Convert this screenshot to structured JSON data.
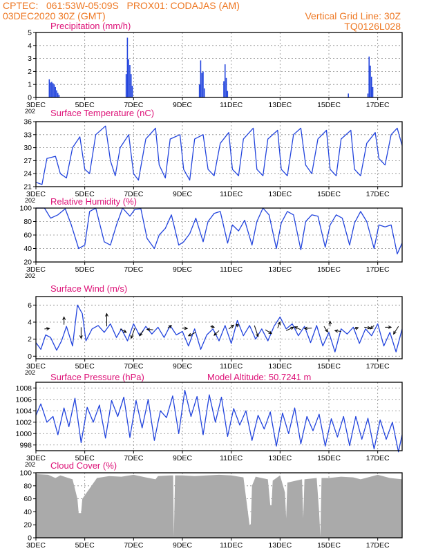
{
  "header": {
    "line1_left": "CPTEC:   061:53W-05:09S   PROX01: CODAJAS (AM)",
    "line2_left": "03DEC2020 30Z (GMT)",
    "line2_right": "Vertical Grid Line: 30Z",
    "line3_right": "TQ0126L028"
  },
  "colors": {
    "header_text": "#ee7722",
    "panel_title": "#dd1177",
    "series_line": "#2244dd",
    "cloud_fill": "#aaaaaa",
    "arrow": "#000000",
    "grid": "#888888"
  },
  "x_axis": {
    "tick_labels": [
      "3DEC",
      "5DEC",
      "7DEC",
      "9DEC",
      "11DEC",
      "13DEC",
      "15DEC",
      "17DEC"
    ],
    "tick_days": [
      3,
      5,
      7,
      9,
      11,
      13,
      15,
      17
    ],
    "range_days": [
      3,
      18
    ],
    "year_fragment": "202"
  },
  "chart_data": [
    {
      "type": "bar",
      "title": "Precipitation (mm/h)",
      "ylim": [
        0,
        5
      ],
      "yticks": [
        0,
        1,
        2,
        3,
        4,
        5
      ],
      "bars": [
        [
          3.55,
          1.4
        ],
        [
          3.6,
          1.15
        ],
        [
          3.65,
          1.2
        ],
        [
          3.7,
          1.1
        ],
        [
          3.75,
          1.0
        ],
        [
          3.8,
          0.8
        ],
        [
          3.85,
          0.55
        ],
        [
          3.9,
          0.35
        ],
        [
          3.95,
          0.2
        ],
        [
          6.7,
          1.8
        ],
        [
          6.75,
          4.6
        ],
        [
          6.8,
          2.95
        ],
        [
          6.85,
          2.5
        ],
        [
          6.9,
          1.8
        ],
        [
          6.95,
          0.9
        ],
        [
          9.7,
          1.0
        ],
        [
          9.75,
          2.85
        ],
        [
          9.8,
          1.9
        ],
        [
          9.85,
          2.0
        ],
        [
          9.9,
          0.7
        ],
        [
          10.7,
          1.25
        ],
        [
          10.75,
          2.55
        ],
        [
          10.8,
          1.5
        ],
        [
          10.85,
          0.5
        ],
        [
          15.8,
          0.3
        ],
        [
          16.6,
          0.3
        ],
        [
          16.65,
          3.15
        ],
        [
          16.7,
          2.45
        ],
        [
          16.75,
          1.6
        ],
        [
          16.8,
          0.8
        ]
      ]
    },
    {
      "type": "line",
      "title": "Surface Temperature (nC)",
      "ylim": [
        21,
        36
      ],
      "yticks": [
        21,
        24,
        27,
        30,
        33,
        36
      ],
      "x": [
        3,
        3.25,
        3.45,
        3.8,
        4,
        4.25,
        4.5,
        4.8,
        5,
        5.2,
        5.45,
        5.85,
        6.05,
        6.25,
        6.45,
        6.8,
        7,
        7.2,
        7.5,
        7.9,
        8.05,
        8.3,
        8.5,
        8.9,
        9.05,
        9.3,
        9.5,
        9.85,
        10.05,
        10.3,
        10.55,
        10.9,
        11.05,
        11.3,
        11.5,
        11.9,
        12.05,
        12.3,
        12.5,
        12.9,
        13.05,
        13.3,
        13.55,
        13.85,
        14.05,
        14.3,
        14.55,
        14.9,
        15.05,
        15.3,
        15.5,
        15.9,
        16.05,
        16.3,
        16.55,
        16.9,
        17.05,
        17.3,
        17.55,
        17.8,
        18
      ],
      "y": [
        22,
        21.5,
        27.5,
        28,
        24,
        23,
        30,
        32.5,
        25,
        24,
        33,
        35,
        27,
        23.5,
        30,
        33,
        24,
        22.5,
        32,
        34.5,
        26,
        23,
        32,
        33,
        25,
        22.5,
        32,
        33,
        25,
        23.5,
        31,
        33.5,
        25,
        23.5,
        32,
        34.5,
        25,
        23.5,
        32,
        34,
        25,
        23.5,
        33,
        34.5,
        26,
        24,
        32,
        34,
        25,
        23.5,
        32,
        34,
        25,
        23.5,
        31,
        33.5,
        27.5,
        26,
        33,
        34.5,
        30.5
      ]
    },
    {
      "type": "line",
      "title": "Relative Humidity (%)",
      "ylim": [
        20,
        100
      ],
      "yticks": [
        20,
        40,
        60,
        80,
        100
      ],
      "x": [
        3,
        3.35,
        3.6,
        3.9,
        4.2,
        4.45,
        4.75,
        5,
        5.2,
        5.45,
        5.8,
        6.05,
        6.3,
        6.55,
        6.85,
        7.05,
        7.3,
        7.55,
        7.85,
        8.05,
        8.3,
        8.55,
        8.85,
        9.05,
        9.3,
        9.55,
        9.85,
        10.05,
        10.3,
        10.55,
        10.85,
        11.05,
        11.3,
        11.55,
        11.85,
        12.05,
        12.3,
        12.55,
        12.85,
        13.05,
        13.3,
        13.55,
        13.85,
        14.05,
        14.3,
        14.55,
        14.85,
        15.05,
        15.3,
        15.55,
        15.85,
        16.05,
        16.3,
        16.55,
        16.85,
        17.05,
        17.3,
        17.55,
        17.8,
        18
      ],
      "y": [
        100,
        100,
        85,
        90,
        99,
        75,
        40,
        45,
        95,
        100,
        50,
        45,
        75,
        100,
        88,
        98,
        99,
        55,
        40,
        60,
        70,
        90,
        45,
        50,
        62,
        85,
        50,
        80,
        92,
        95,
        48,
        75,
        66,
        82,
        45,
        80,
        100,
        90,
        40,
        78,
        95,
        90,
        38,
        80,
        90,
        88,
        42,
        75,
        90,
        85,
        45,
        78,
        95,
        80,
        40,
        75,
        72,
        75,
        32,
        48
      ]
    },
    {
      "type": "line",
      "title": "Surface Wind (m/s)",
      "ylim": [
        -0.3,
        7
      ],
      "yticks": [
        0,
        2,
        4,
        6
      ],
      "x": [
        3,
        3.2,
        3.4,
        3.6,
        3.85,
        4.05,
        4.25,
        4.5,
        4.7,
        4.9,
        5.05,
        5.3,
        5.55,
        5.8,
        6.05,
        6.3,
        6.5,
        6.75,
        7,
        7.25,
        7.5,
        7.75,
        8,
        8.25,
        8.5,
        8.75,
        9,
        9.25,
        9.5,
        9.75,
        10,
        10.25,
        10.5,
        10.75,
        11,
        11.25,
        11.5,
        11.75,
        12,
        12.25,
        12.5,
        12.75,
        13,
        13.25,
        13.5,
        13.75,
        14,
        14.25,
        14.5,
        14.75,
        15,
        15.25,
        15.5,
        15.75,
        16,
        16.25,
        16.5,
        16.75,
        17,
        17.25,
        17.5,
        17.75,
        18
      ],
      "y": [
        1.6,
        0.8,
        2.5,
        2.2,
        0.7,
        1.8,
        3.5,
        1.2,
        6,
        5,
        1.8,
        3.2,
        3.6,
        2.8,
        3.8,
        2.2,
        3.2,
        1.8,
        3.8,
        2.4,
        3.5,
        2.6,
        3.4,
        2.2,
        3.6,
        2.5,
        2.9,
        1.2,
        3.2,
        0.8,
        2.5,
        3.2,
        1.8,
        3.6,
        1.5,
        4.2,
        2.4,
        3.6,
        2,
        3.2,
        1.8,
        3.5,
        4.6,
        3.2,
        3.8,
        2.4,
        3.5,
        1.6,
        3.6,
        1.2,
        2.8,
        0.5,
        3.2,
        2.6,
        3.4,
        1.5,
        3.2,
        2.4,
        3.8,
        1.2,
        2.8,
        0.5,
        3.2
      ],
      "arrows": [
        [
          3.35,
          3.2,
          0.2,
          0.05
        ],
        [
          4.15,
          3.7,
          0,
          0.9
        ],
        [
          4.85,
          3.4,
          0,
          -1.3
        ],
        [
          5.9,
          3.5,
          0,
          1.5
        ],
        [
          6.45,
          3.2,
          0.25,
          -0.4
        ],
        [
          7.05,
          3.3,
          -0.15,
          -1.2
        ],
        [
          7.4,
          3.0,
          -0.15,
          -0.6
        ],
        [
          7.8,
          3.1,
          -0.25,
          0.05
        ],
        [
          8.4,
          3.3,
          0.15,
          0.3
        ],
        [
          9.0,
          3.3,
          0.2,
          -0.05
        ],
        [
          9.55,
          2.8,
          -0.3,
          -0.4
        ],
        [
          10.15,
          3.5,
          0.15,
          -0.1
        ],
        [
          10.5,
          3.0,
          -0.2,
          -0.55
        ],
        [
          10.9,
          3.2,
          0.2,
          0.45
        ],
        [
          11.3,
          3.5,
          -0.1,
          0.25
        ],
        [
          11.95,
          3.6,
          0.15,
          -1.3
        ],
        [
          12.4,
          3.1,
          0.25,
          -0.45
        ],
        [
          12.9,
          3.3,
          0.1,
          0.7
        ],
        [
          13.25,
          3.0,
          0.3,
          0.4
        ],
        [
          13.85,
          3.1,
          -0.25,
          0.35
        ],
        [
          14.3,
          3.3,
          -0.3,
          -0.05
        ],
        [
          14.8,
          3.5,
          0.15,
          -0.65
        ],
        [
          15.05,
          3.5,
          0,
          0.6
        ],
        [
          15.5,
          2.9,
          -0.25,
          0.1
        ],
        [
          16.05,
          3.2,
          0.15,
          0.15
        ],
        [
          16.45,
          3.4,
          0.25,
          -0.1
        ],
        [
          16.85,
          3.6,
          -0.15,
          -0.4
        ],
        [
          17.3,
          3.4,
          0.25,
          0
        ],
        [
          17.85,
          3.5,
          -0.2,
          -0.9
        ]
      ]
    },
    {
      "type": "line",
      "title": "Surface Pressure (hPa)",
      "subtitle": "Model Altitude: 50.7241  m",
      "ylim": [
        997,
        1009
      ],
      "yticks": [
        998,
        1000,
        1002,
        1004,
        1006,
        1008
      ],
      "x": [
        3,
        3.2,
        3.45,
        3.7,
        3.9,
        4.15,
        4.35,
        4.6,
        4.85,
        5.1,
        5.35,
        5.6,
        5.85,
        6.1,
        6.35,
        6.6,
        6.85,
        7.1,
        7.35,
        7.6,
        7.85,
        8.1,
        8.35,
        8.6,
        8.85,
        9.1,
        9.35,
        9.6,
        9.85,
        10.1,
        10.35,
        10.6,
        10.85,
        11.1,
        11.35,
        11.6,
        11.85,
        12.1,
        12.35,
        12.6,
        12.85,
        13.1,
        13.35,
        13.6,
        13.85,
        14.1,
        14.35,
        14.6,
        14.85,
        15.1,
        15.35,
        15.6,
        15.85,
        16.1,
        16.35,
        16.6,
        16.85,
        17.1,
        17.35,
        17.6,
        17.85,
        18
      ],
      "y": [
        1003.2,
        1005.2,
        1002.0,
        1003.0,
        999.8,
        1004.5,
        1001.2,
        1006.2,
        998.4,
        1004.6,
        1002.0,
        1005.0,
        999.2,
        1005.8,
        1003.0,
        1006.4,
        999.3,
        1005.8,
        1001.0,
        1006.0,
        998.8,
        1004.0,
        1002.8,
        1006.6,
        1000.0,
        1007.6,
        1003.0,
        1006.5,
        999.8,
        1006.8,
        1002.0,
        1006.4,
        999.5,
        1004.4,
        1001.5,
        1004.0,
        998.8,
        1003.2,
        1000.8,
        1003.8,
        997.8,
        1003.6,
        1000.0,
        1004.5,
        998.2,
        1003.0,
        1000.5,
        1003.4,
        997.8,
        1002.6,
        999.4,
        1003.0,
        997.9,
        1003.0,
        999.0,
        1002.7,
        997.3,
        1002.4,
        999.0,
        1002.0,
        996.8,
        999.8
      ]
    },
    {
      "type": "area",
      "title": "Cloud Cover (%)",
      "ylim": [
        0,
        100
      ],
      "yticks": [
        0,
        20,
        40,
        60,
        80,
        100
      ],
      "x": [
        3,
        3.5,
        3.8,
        4,
        4.5,
        4.7,
        4.75,
        4.85,
        4.9,
        5.5,
        6,
        6.5,
        7,
        7.5,
        7.9,
        8,
        8.5,
        8.62,
        8.65,
        8.7,
        9,
        9.5,
        10,
        10.5,
        11,
        11.5,
        11.75,
        11.8,
        11.85,
        12,
        12.5,
        12.6,
        12.65,
        12.7,
        13,
        13.2,
        13.25,
        13.3,
        13.9,
        13.95,
        14,
        14.5,
        14.6,
        14.65,
        14.7,
        15,
        15.5,
        16,
        16.3,
        16.8,
        17,
        17.5,
        18
      ],
      "y": [
        98,
        97,
        92,
        96,
        90,
        60,
        38,
        38,
        60,
        92,
        95,
        94,
        97,
        93,
        90,
        95,
        96,
        96,
        2,
        96,
        96,
        95,
        96,
        97,
        96,
        93,
        20,
        20,
        80,
        94,
        90,
        50,
        50,
        88,
        96,
        70,
        30,
        85,
        90,
        30,
        90,
        92,
        40,
        2,
        92,
        92,
        94,
        93,
        90,
        95,
        97,
        92,
        90
      ]
    }
  ]
}
